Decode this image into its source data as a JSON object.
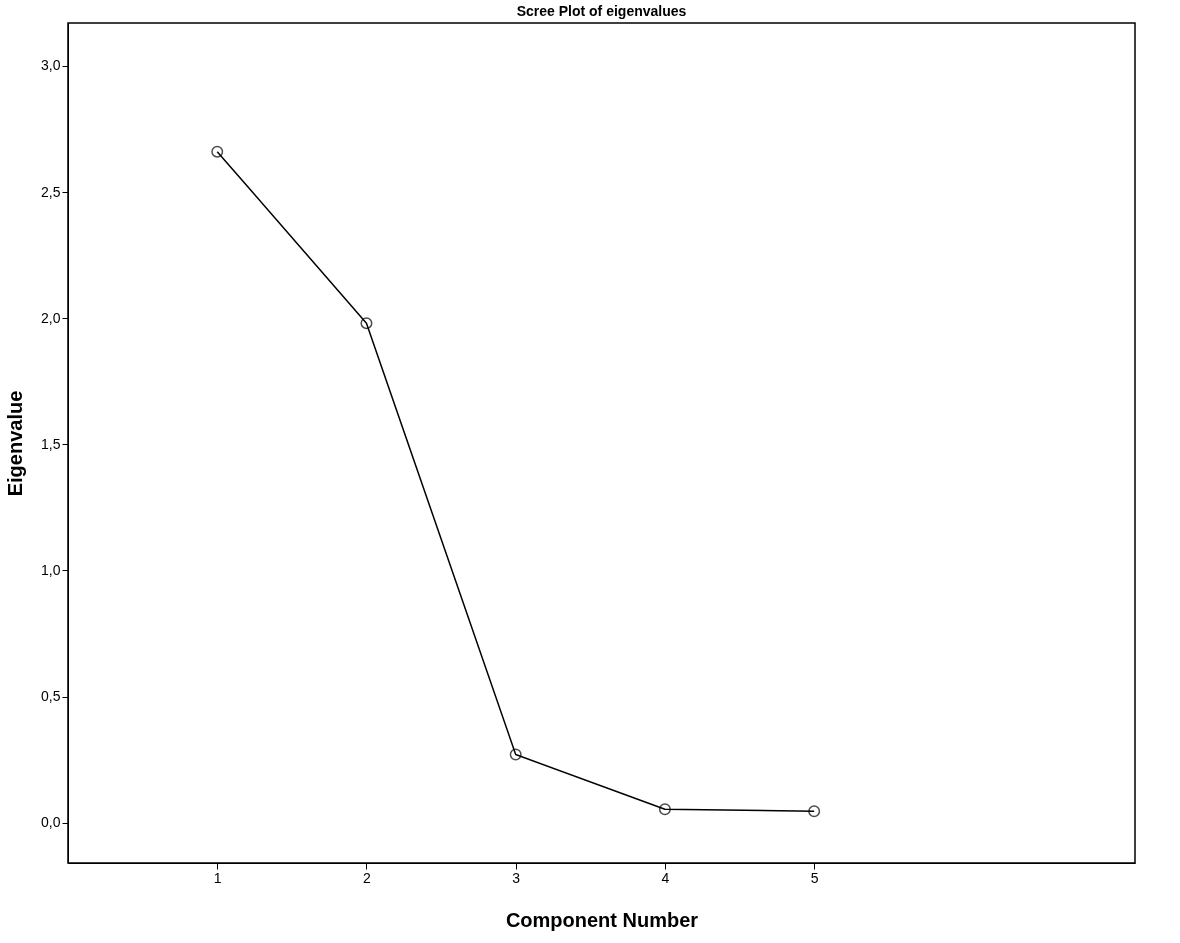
{
  "chart_data": {
    "type": "line",
    "title": "Scree Plot of eigenvalues",
    "xlabel": "Component Number",
    "ylabel": "Eigenvalue",
    "x": [
      1,
      2,
      3,
      4,
      5
    ],
    "series": [
      {
        "color": "#000000",
        "values": [
          2.66,
          1.98,
          0.27,
          0.053,
          0.045
        ]
      }
    ],
    "xlim": [
      0,
      7.15
    ],
    "xticks": [
      1,
      2,
      3,
      4,
      5
    ],
    "ylim": [
      -0.16,
      3.17
    ],
    "yticks": [
      {
        "value": 0,
        "label": "0,0"
      },
      {
        "value": 0.5,
        "label": "0,5"
      },
      {
        "value": 1,
        "label": "1,0"
      },
      {
        "value": 1.5,
        "label": "1,5"
      },
      {
        "value": 2,
        "label": "2,0"
      },
      {
        "value": 2.5,
        "label": "2,5"
      },
      {
        "value": 3,
        "label": "3,0"
      }
    ],
    "marker": "circle",
    "grid": false
  }
}
